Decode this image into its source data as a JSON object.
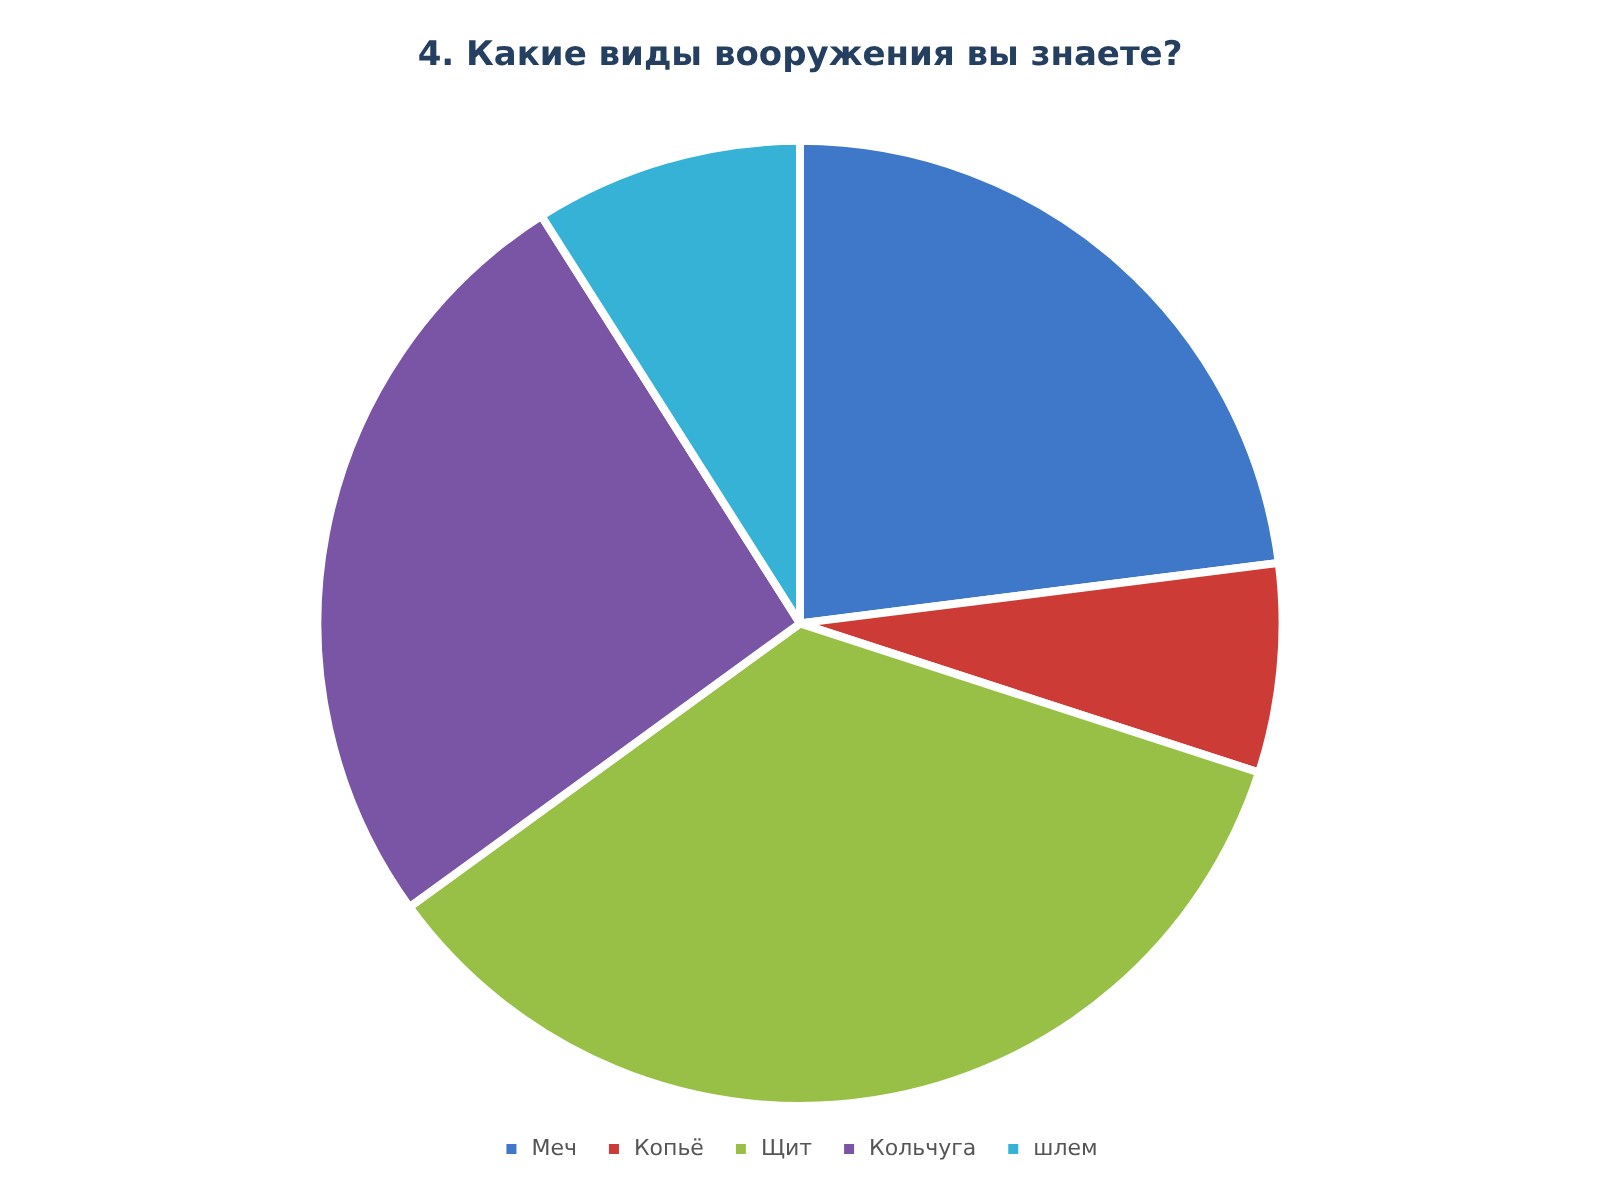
{
  "chart_data": {
    "type": "pie",
    "title": "4. Какие виды вооружения вы знаете?",
    "categories": [
      "Меч",
      "Копьё",
      "Щит",
      "Кольчуга",
      "шлем"
    ],
    "values": [
      23,
      7,
      35,
      26,
      9
    ],
    "colors": [
      "#3f78c8",
      "#cc3b36",
      "#98c046",
      "#7a55a5",
      "#35b2d6"
    ],
    "legend": "bottom"
  }
}
